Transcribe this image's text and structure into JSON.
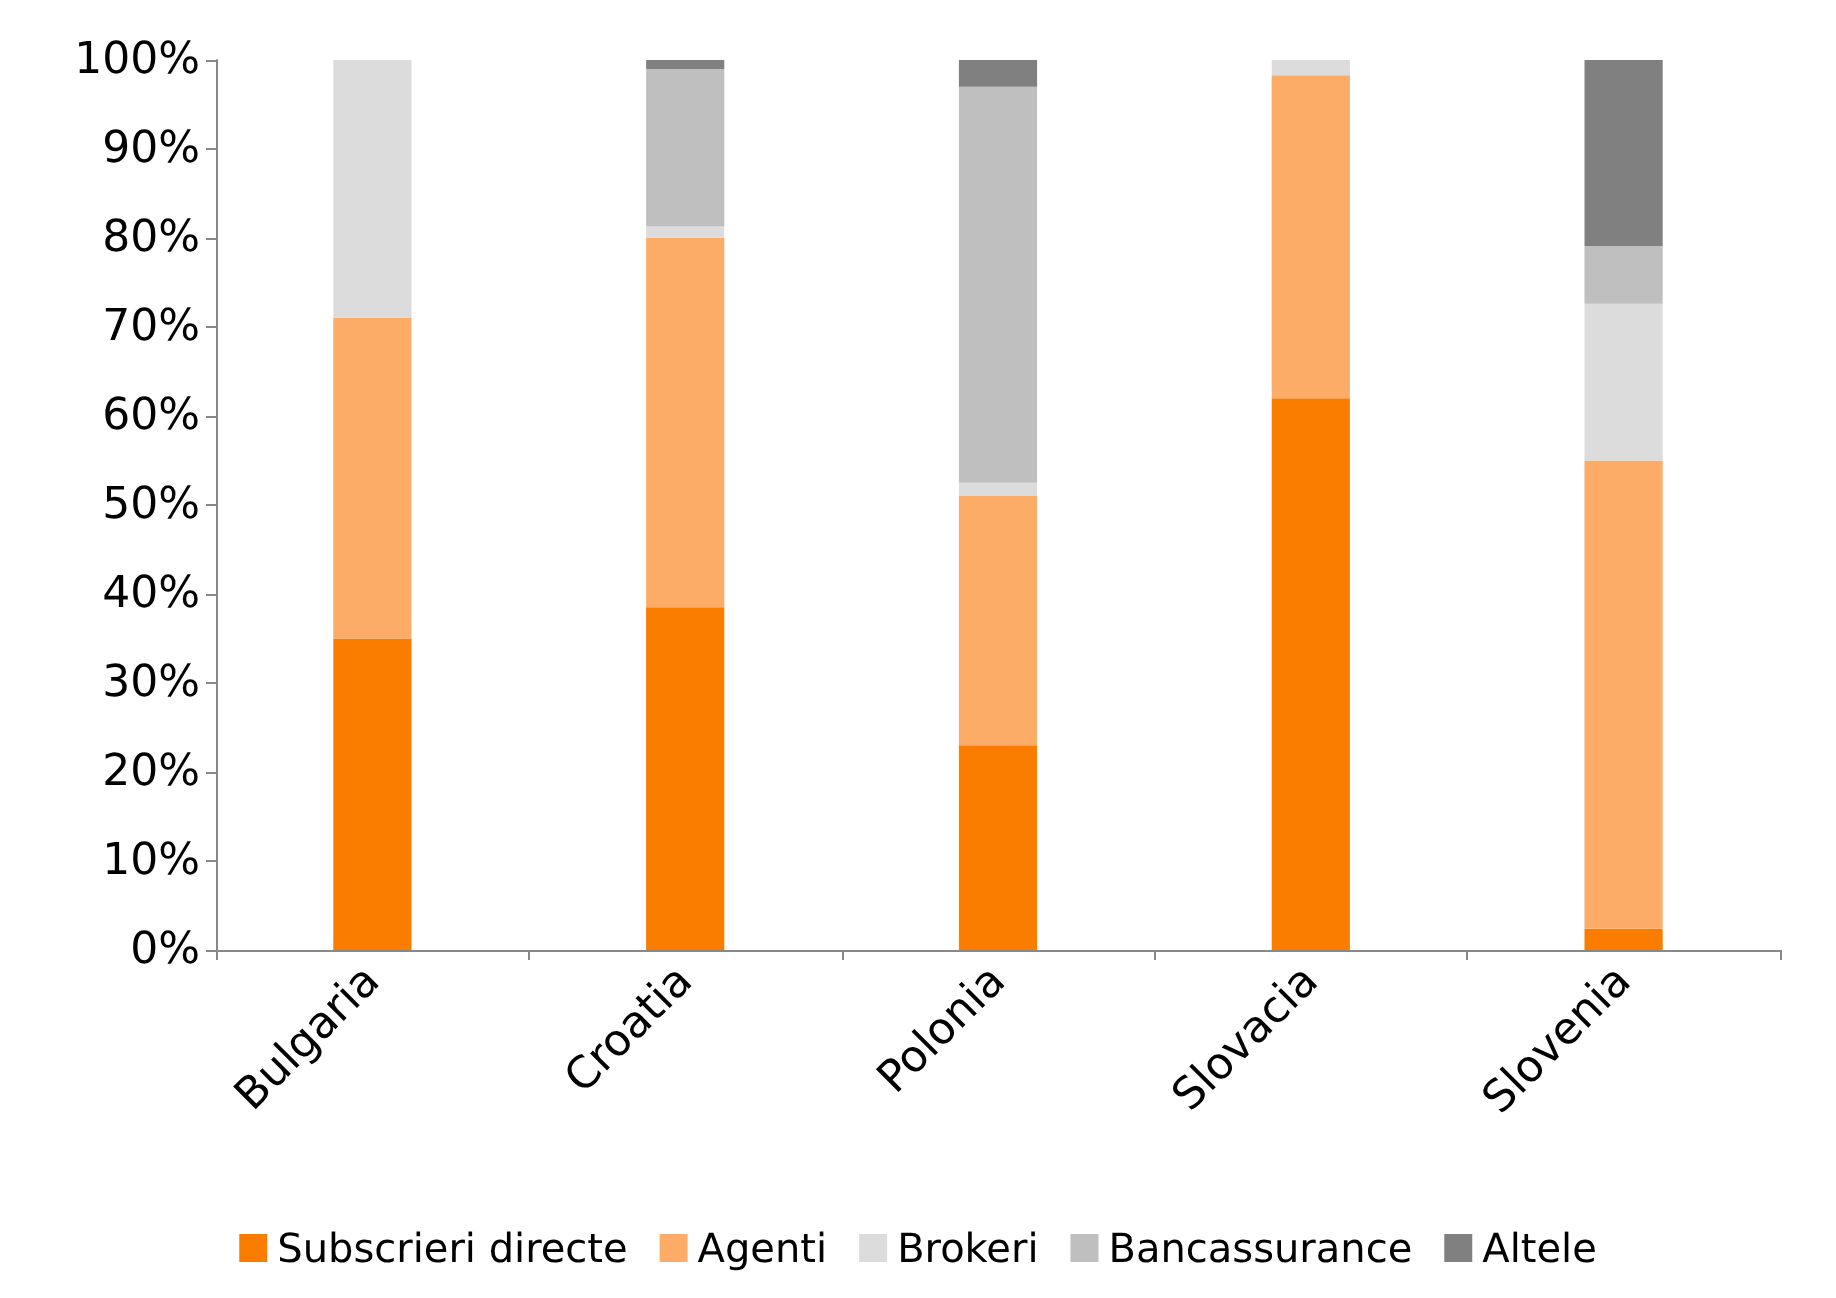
{
  "chart_data": {
    "type": "bar",
    "stacked": true,
    "categories": [
      "Bulgaria",
      "Croatia",
      "Polonia",
      "Slovacia",
      "Slovenia"
    ],
    "series": [
      {
        "name": "Subscrieri directe",
        "color": "#fa7d00",
        "values": [
          35,
          38.5,
          23,
          62,
          2.4
        ]
      },
      {
        "name": "Agenti",
        "color": "#fcac66",
        "values": [
          36,
          41.5,
          28,
          36.3,
          52.6
        ]
      },
      {
        "name": "Brokeri",
        "color": "#dcdcdc",
        "values": [
          29,
          1.3,
          1.5,
          1.7,
          17.6
        ]
      },
      {
        "name": "Bancassurance",
        "color": "#bfbfbf",
        "values": [
          0,
          17.7,
          44.5,
          0,
          6.5
        ]
      },
      {
        "name": "Altele",
        "color": "#808080",
        "values": [
          0,
          1,
          3,
          0,
          20.9
        ]
      }
    ],
    "ylim": [
      0,
      100
    ],
    "yticks": [
      {
        "value": 0,
        "label": "0%"
      },
      {
        "value": 10,
        "label": "10%"
      },
      {
        "value": 20,
        "label": "20%"
      },
      {
        "value": 30,
        "label": "30%"
      },
      {
        "value": 40,
        "label": "40%"
      },
      {
        "value": 50,
        "label": "50%"
      },
      {
        "value": 60,
        "label": "60%"
      },
      {
        "value": 70,
        "label": "70%"
      },
      {
        "value": 80,
        "label": "80%"
      },
      {
        "value": 90,
        "label": "90%"
      },
      {
        "value": 100,
        "label": "100%"
      }
    ],
    "grid": false,
    "legend": "bottom"
  }
}
